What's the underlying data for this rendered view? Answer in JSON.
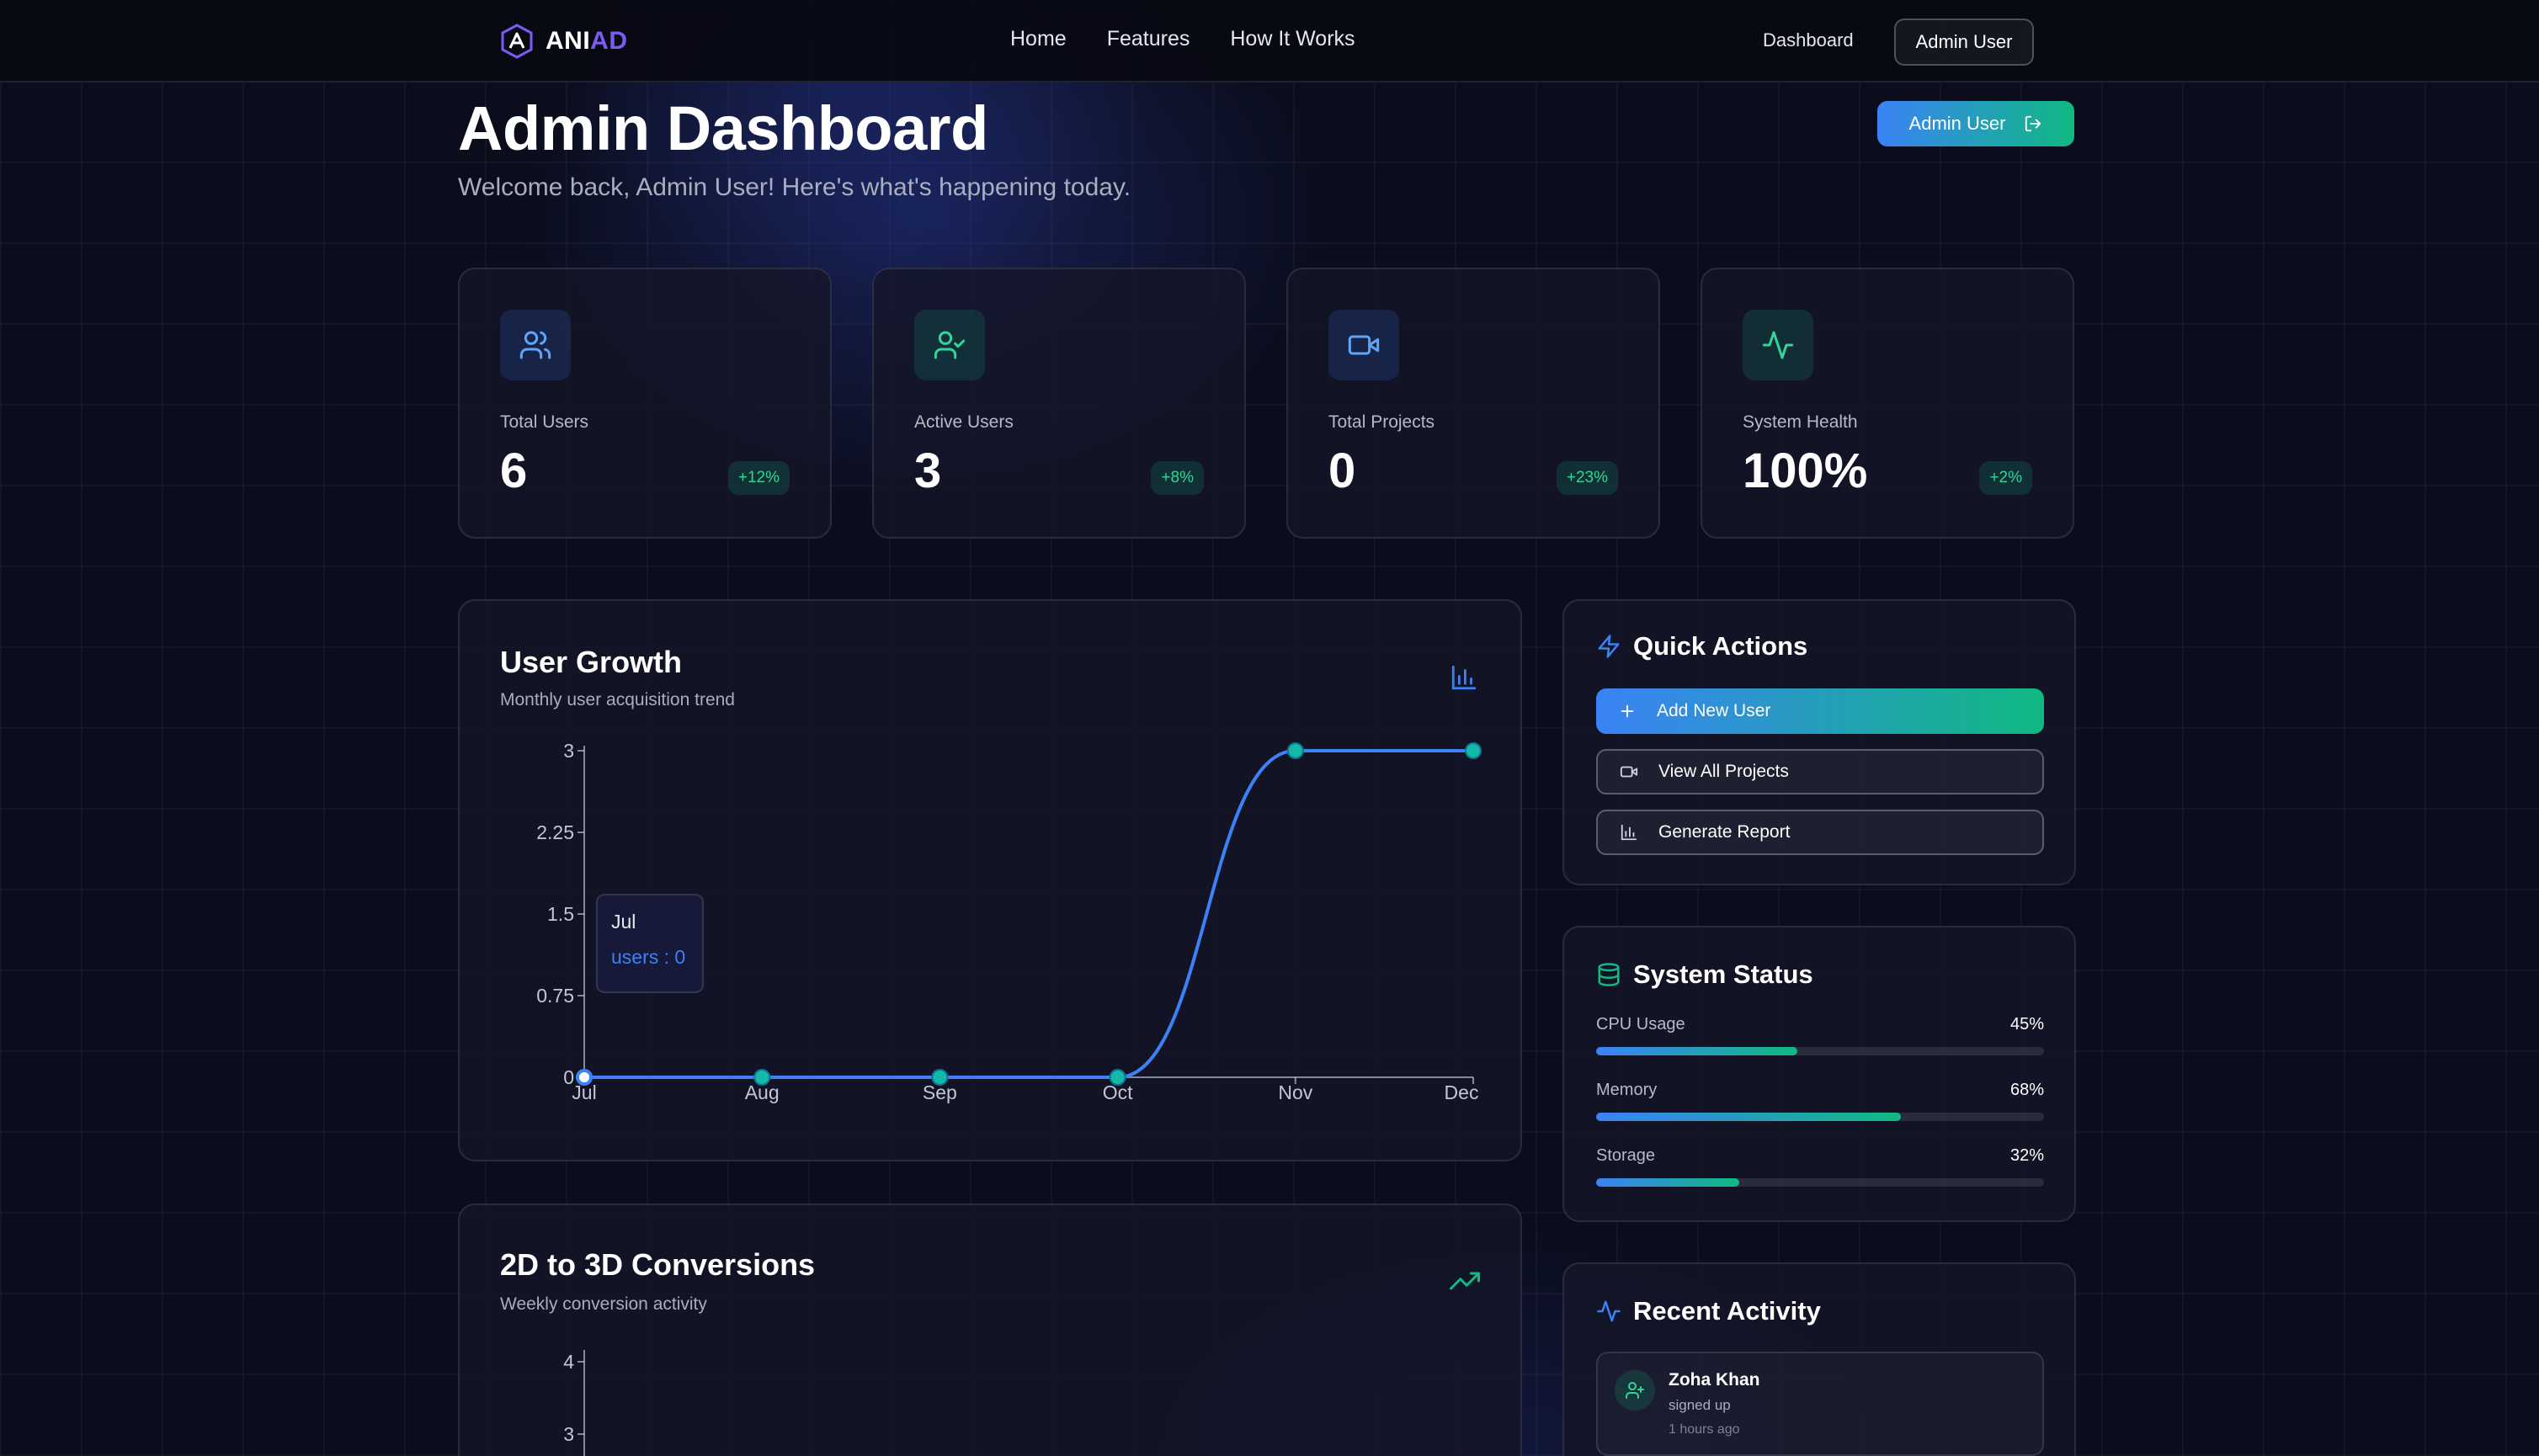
{
  "nav": {
    "brand_part1": "ANI",
    "brand_part2": "AD",
    "links": [
      "Home",
      "Features",
      "How It Works"
    ],
    "dashboard_link": "Dashboard",
    "user_button": "Admin User"
  },
  "header": {
    "title": "Admin Dashboard",
    "subtitle": "Welcome back, Admin User! Here's what's happening today.",
    "user_button": "Admin User"
  },
  "stats": [
    {
      "label": "Total Users",
      "value": "6",
      "change": "+12%",
      "icon": "users-icon"
    },
    {
      "label": "Active Users",
      "value": "3",
      "change": "+8%",
      "icon": "user-check-icon"
    },
    {
      "label": "Total Projects",
      "value": "0",
      "change": "+23%",
      "icon": "video-icon"
    },
    {
      "label": "System Health",
      "value": "100%",
      "change": "+2%",
      "icon": "activity-icon"
    }
  ],
  "user_growth": {
    "title": "User Growth",
    "subtitle": "Monthly user acquisition trend",
    "icon": "bar-chart-icon",
    "tooltip": {
      "month": "Jul",
      "text": "users : 0"
    }
  },
  "conversions": {
    "title": "2D to 3D Conversions",
    "subtitle": "Weekly conversion activity",
    "icon": "trending-up-icon"
  },
  "chart_data": [
    {
      "type": "line",
      "title": "User Growth",
      "categories": [
        "Jul",
        "Aug",
        "Sep",
        "Oct",
        "Nov",
        "Dec"
      ],
      "series": [
        {
          "name": "users",
          "values": [
            0,
            0,
            0,
            0,
            3,
            3
          ]
        }
      ],
      "yticks": [
        "0",
        "0.75",
        "1.5",
        "2.25",
        "3"
      ],
      "ylim": [
        0,
        3
      ],
      "color": "#3b82f6"
    },
    {
      "type": "line",
      "title": "2D to 3D Conversions",
      "yticks": [
        "3",
        "4"
      ],
      "ylim": [
        0,
        4
      ]
    }
  ],
  "quick_actions": {
    "title": "Quick Actions",
    "buttons": [
      {
        "label": "Add New User",
        "icon": "plus-icon"
      },
      {
        "label": "View All Projects",
        "icon": "video-icon"
      },
      {
        "label": "Generate Report",
        "icon": "bar-chart-icon"
      }
    ]
  },
  "system_status": {
    "title": "System Status",
    "items": [
      {
        "label": "CPU Usage",
        "value": "45%",
        "fraction": 0.45
      },
      {
        "label": "Memory",
        "value": "68%",
        "fraction": 0.68
      },
      {
        "label": "Storage",
        "value": "32%",
        "fraction": 0.32
      }
    ]
  },
  "recent_activity": {
    "title": "Recent Activity",
    "items": [
      {
        "name": "Zoha Khan",
        "action": "signed up",
        "time": "1 hours ago"
      }
    ]
  },
  "colors": {
    "accent_blue": "#3b82f6",
    "accent_green": "#10b981",
    "brand_purple": "#7b5cf0",
    "background": "#0b0d1c"
  }
}
